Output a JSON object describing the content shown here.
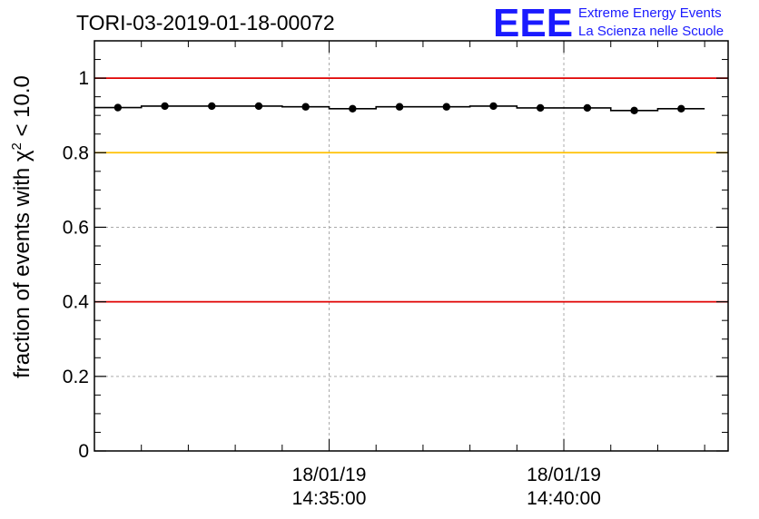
{
  "chart_data": {
    "type": "scatter",
    "title": "TORI-03-2019-01-18-00072",
    "ylabel_prefix": "fraction of events with ",
    "ylabel_symbol": "χ",
    "ylabel_exp": "2",
    "ylabel_suffix": " < 10.0",
    "xlabel": "",
    "ylim": [
      0,
      1.1
    ],
    "yticks": [
      {
        "value": 0,
        "label": "0"
      },
      {
        "value": 0.2,
        "label": "0.2"
      },
      {
        "value": 0.4,
        "label": "0.4"
      },
      {
        "value": 0.6,
        "label": "0.6"
      },
      {
        "value": 0.8,
        "label": "0.8"
      },
      {
        "value": 1,
        "label": "1"
      }
    ],
    "xlim_minutes": [
      0,
      13.5
    ],
    "xticks": [
      {
        "value": 5.0,
        "date": "18/01/19",
        "time": "14:35:00"
      },
      {
        "value": 10.0,
        "date": "18/01/19",
        "time": "14:40:00"
      }
    ],
    "reference_lines": [
      {
        "value": 1.0,
        "color": "#e00000"
      },
      {
        "value": 0.8,
        "color": "#ffc000"
      },
      {
        "value": 0.4,
        "color": "#e00000"
      }
    ],
    "series": [
      {
        "name": "fraction",
        "x": [
          0.5,
          1.5,
          2.5,
          3.5,
          4.5,
          5.5,
          6.5,
          7.5,
          8.5,
          9.5,
          10.5,
          11.5,
          12.5
        ],
        "values": [
          0.921,
          0.925,
          0.925,
          0.925,
          0.923,
          0.918,
          0.923,
          0.923,
          0.925,
          0.92,
          0.92,
          0.913,
          0.918
        ]
      }
    ]
  },
  "logo": {
    "mark": "EEE",
    "line1": "Extreme Energy Events",
    "line2": "La Scienza nelle Scuole"
  },
  "colors": {
    "marker": "#000000",
    "logo": "#1a1aff",
    "grid": "#aaaaaa"
  }
}
